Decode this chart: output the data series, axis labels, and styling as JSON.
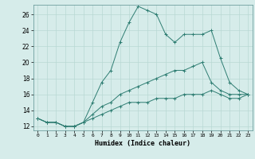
{
  "xlabel": "Humidex (Indice chaleur)",
  "background_color": "#d6ecea",
  "grid_color": "#b8d8d4",
  "line_color": "#2e7d72",
  "xlim": [
    -0.5,
    23.5
  ],
  "ylim": [
    11.5,
    27.2
  ],
  "xticks": [
    0,
    1,
    2,
    3,
    4,
    5,
    6,
    7,
    8,
    9,
    10,
    11,
    12,
    13,
    14,
    15,
    16,
    17,
    18,
    19,
    20,
    21,
    22,
    23
  ],
  "yticks": [
    12,
    14,
    16,
    18,
    20,
    22,
    24,
    26
  ],
  "line1_x": [
    0,
    1,
    2,
    3,
    4,
    5,
    6,
    7,
    8,
    9,
    10,
    11,
    12,
    13,
    14,
    15,
    16,
    17,
    18,
    19,
    20,
    21,
    22,
    23
  ],
  "line1_y": [
    13.0,
    12.5,
    12.5,
    12.0,
    12.0,
    12.5,
    15.0,
    17.5,
    19.0,
    22.5,
    25.0,
    27.0,
    26.5,
    26.0,
    23.5,
    22.5,
    23.5,
    23.5,
    23.5,
    24.0,
    20.5,
    17.5,
    16.5,
    16.0
  ],
  "line2_x": [
    0,
    1,
    2,
    3,
    4,
    5,
    6,
    7,
    8,
    9,
    10,
    11,
    12,
    13,
    14,
    15,
    16,
    17,
    18,
    19,
    20,
    21,
    22,
    23
  ],
  "line2_y": [
    13.0,
    12.5,
    12.5,
    12.0,
    12.0,
    12.5,
    13.5,
    14.5,
    15.0,
    16.0,
    16.5,
    17.0,
    17.5,
    18.0,
    18.5,
    19.0,
    19.0,
    19.5,
    20.0,
    17.5,
    16.5,
    16.0,
    16.0,
    16.0
  ],
  "line3_x": [
    0,
    1,
    2,
    3,
    4,
    5,
    6,
    7,
    8,
    9,
    10,
    11,
    12,
    13,
    14,
    15,
    16,
    17,
    18,
    19,
    20,
    21,
    22,
    23
  ],
  "line3_y": [
    13.0,
    12.5,
    12.5,
    12.0,
    12.0,
    12.5,
    13.0,
    13.5,
    14.0,
    14.5,
    15.0,
    15.0,
    15.0,
    15.5,
    15.5,
    15.5,
    16.0,
    16.0,
    16.0,
    16.5,
    16.0,
    15.5,
    15.5,
    16.0
  ]
}
